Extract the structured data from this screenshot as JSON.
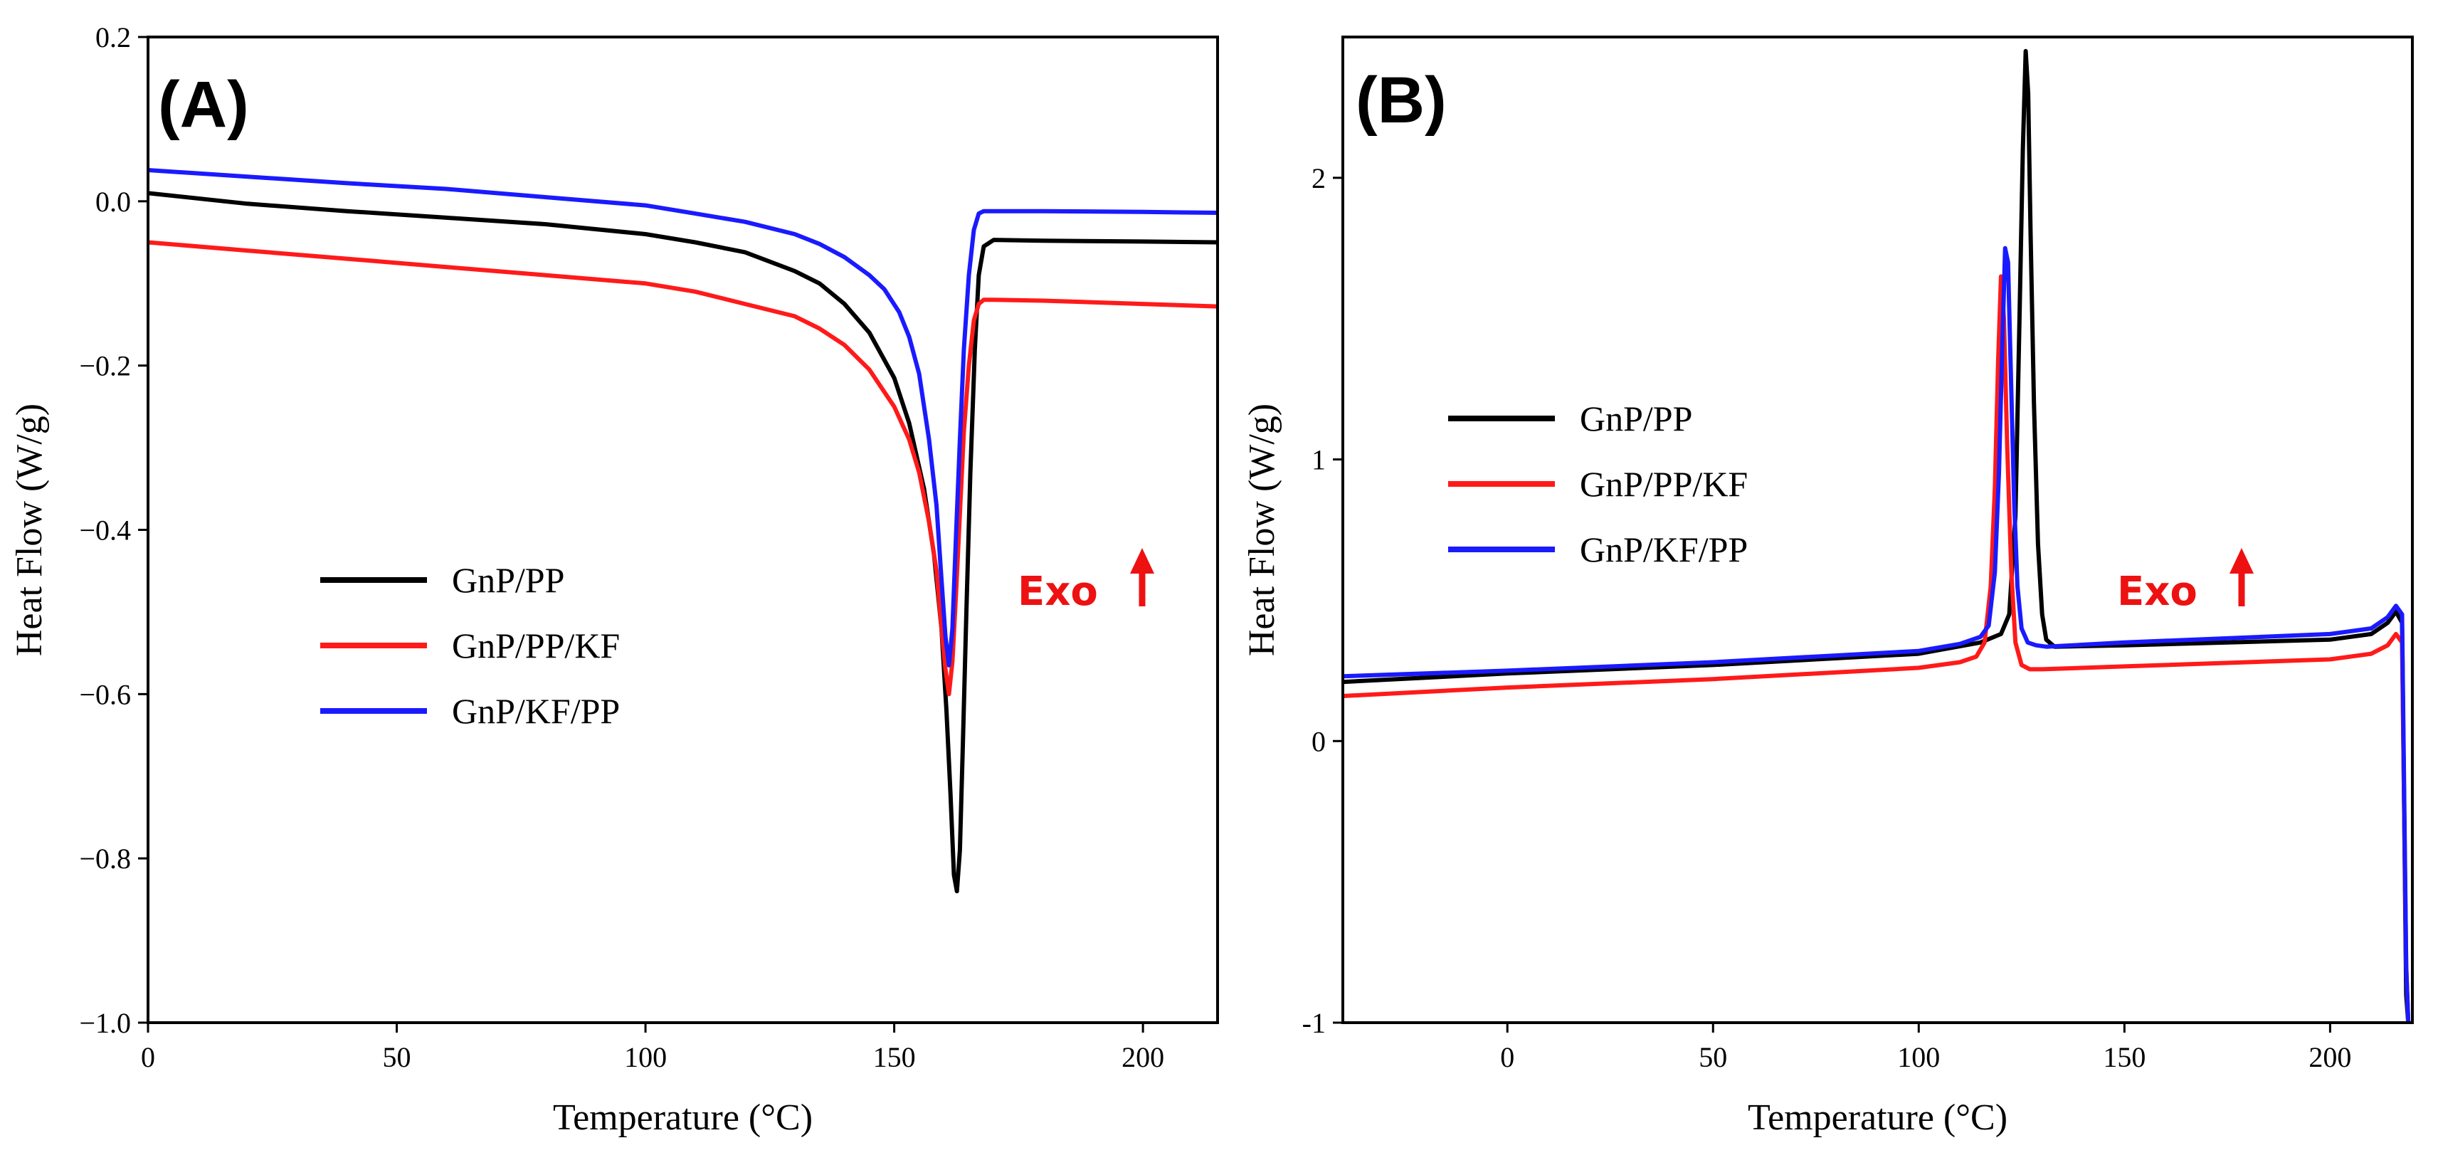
{
  "colors": {
    "black": "#000000",
    "red": "#ff1a1a",
    "blue": "#1a1aff",
    "annotation": "#ee1111"
  },
  "chart_data": [
    {
      "type": "line",
      "panel_label": "(A)",
      "xlabel": "Temperature (°C)",
      "ylabel": "Heat Flow (W/g)",
      "xlim": [
        0,
        215
      ],
      "ylim": [
        -1.0,
        0.2
      ],
      "xticks": [
        0,
        50,
        100,
        150,
        200
      ],
      "yticks": [
        -1.0,
        -0.8,
        -0.6,
        -0.4,
        -0.2,
        0.0,
        0.2
      ],
      "ytick_labels": [
        "−1.0",
        "−0.8",
        "−0.6",
        "−0.4",
        "−0.2",
        "0.0",
        "0.2"
      ],
      "grid": false,
      "legend_position": "center-left",
      "annotation": {
        "text": "Exo",
        "arrow": "up",
        "x": 197,
        "y": -0.45
      },
      "series": [
        {
          "name": "GnP/PP",
          "color": "#000000",
          "x": [
            0,
            20,
            40,
            60,
            80,
            100,
            110,
            120,
            130,
            135,
            140,
            145,
            150,
            153,
            156,
            158,
            159.5,
            160.5,
            161.3,
            162,
            162.6,
            163.2,
            163.8,
            164.5,
            165.3,
            166.2,
            167,
            168,
            170,
            180,
            200,
            215
          ],
          "y": [
            0.01,
            -0.003,
            -0.012,
            -0.02,
            -0.028,
            -0.04,
            -0.05,
            -0.062,
            -0.085,
            -0.1,
            -0.125,
            -0.16,
            -0.215,
            -0.27,
            -0.35,
            -0.43,
            -0.52,
            -0.62,
            -0.72,
            -0.82,
            -0.84,
            -0.79,
            -0.66,
            -0.5,
            -0.33,
            -0.18,
            -0.09,
            -0.055,
            -0.047,
            -0.048,
            -0.049,
            -0.05
          ]
        },
        {
          "name": "GnP/PP/KF",
          "color": "#ff1a1a",
          "x": [
            0,
            20,
            40,
            60,
            80,
            100,
            110,
            120,
            130,
            135,
            140,
            145,
            150,
            153,
            155,
            157,
            158.5,
            159.5,
            160.3,
            161,
            161.7,
            162.4,
            163.2,
            164,
            165,
            166,
            167,
            168,
            170,
            180,
            200,
            215
          ],
          "y": [
            -0.05,
            -0.06,
            -0.07,
            -0.08,
            -0.09,
            -0.1,
            -0.11,
            -0.125,
            -0.14,
            -0.155,
            -0.175,
            -0.205,
            -0.25,
            -0.29,
            -0.33,
            -0.39,
            -0.45,
            -0.52,
            -0.57,
            -0.6,
            -0.56,
            -0.48,
            -0.38,
            -0.28,
            -0.2,
            -0.145,
            -0.125,
            -0.12,
            -0.12,
            -0.121,
            -0.125,
            -0.128
          ]
        },
        {
          "name": "GnP/KF/PP",
          "color": "#1a1aff",
          "x": [
            0,
            20,
            40,
            60,
            80,
            100,
            110,
            120,
            130,
            135,
            140,
            145,
            148,
            151,
            153,
            155,
            157,
            158.5,
            159.5,
            160.3,
            161,
            161.7,
            162.4,
            163.2,
            164,
            165,
            166,
            167,
            168,
            170,
            180,
            200,
            215
          ],
          "y": [
            0.038,
            0.03,
            0.022,
            0.015,
            0.005,
            -0.005,
            -0.015,
            -0.025,
            -0.04,
            -0.052,
            -0.068,
            -0.09,
            -0.107,
            -0.135,
            -0.165,
            -0.21,
            -0.29,
            -0.37,
            -0.46,
            -0.53,
            -0.565,
            -0.52,
            -0.41,
            -0.29,
            -0.18,
            -0.09,
            -0.035,
            -0.015,
            -0.012,
            -0.012,
            -0.012,
            -0.013,
            -0.014
          ]
        }
      ]
    },
    {
      "type": "line",
      "panel_label": "(B)",
      "xlabel": "Temperature (°C)",
      "ylabel": "Heat Flow (W/g)",
      "xlim": [
        -40,
        220
      ],
      "ylim": [
        -1,
        2.5
      ],
      "xticks": [
        0,
        50,
        100,
        150,
        200
      ],
      "yticks": [
        -1,
        0,
        1,
        2
      ],
      "ytick_labels": [
        "-1",
        "0",
        "1",
        "2"
      ],
      "grid": false,
      "legend_position": "upper-left",
      "annotation": {
        "text": "Exo",
        "arrow": "up",
        "x": 170,
        "y": 0.65
      },
      "series": [
        {
          "name": "GnP/PP",
          "color": "#000000",
          "x": [
            -40,
            0,
            50,
            100,
            115,
            120,
            122,
            123.5,
            124.5,
            125.3,
            126,
            126.6,
            127.2,
            128,
            129,
            130,
            131,
            133,
            150,
            200,
            210,
            214,
            216,
            217.5,
            218.5,
            219
          ],
          "y": [
            0.21,
            0.24,
            0.27,
            0.31,
            0.35,
            0.38,
            0.45,
            0.8,
            1.5,
            2.1,
            2.45,
            2.3,
            1.8,
            1.2,
            0.7,
            0.45,
            0.36,
            0.335,
            0.34,
            0.36,
            0.38,
            0.42,
            0.46,
            0.42,
            -0.9,
            -1
          ]
        },
        {
          "name": "GnP/PP/KF",
          "color": "#ff1a1a",
          "x": [
            -40,
            0,
            50,
            100,
            110,
            114,
            116,
            117.5,
            118.5,
            119.3,
            120,
            120.7,
            121.5,
            122.5,
            123.5,
            125,
            127,
            130,
            150,
            200,
            210,
            214,
            216,
            217.5,
            218.5,
            219
          ],
          "y": [
            0.16,
            0.19,
            0.22,
            0.26,
            0.28,
            0.3,
            0.35,
            0.55,
            0.9,
            1.35,
            1.65,
            1.5,
            1.05,
            0.6,
            0.35,
            0.27,
            0.255,
            0.255,
            0.265,
            0.29,
            0.31,
            0.34,
            0.38,
            0.35,
            -0.8,
            -1
          ]
        },
        {
          "name": "GnP/KF/PP",
          "color": "#1a1aff",
          "x": [
            -40,
            0,
            50,
            100,
            110,
            115,
            117,
            118.5,
            119.5,
            120.3,
            121,
            121.7,
            122.4,
            123.2,
            124,
            125,
            126.5,
            128.5,
            131,
            150,
            200,
            210,
            214,
            216,
            217.5,
            218.5,
            219
          ],
          "y": [
            0.23,
            0.25,
            0.28,
            0.32,
            0.345,
            0.37,
            0.41,
            0.6,
            0.95,
            1.4,
            1.75,
            1.7,
            1.3,
            0.85,
            0.55,
            0.4,
            0.35,
            0.34,
            0.335,
            0.35,
            0.38,
            0.4,
            0.44,
            0.48,
            0.45,
            -0.8,
            -1
          ]
        }
      ]
    }
  ]
}
